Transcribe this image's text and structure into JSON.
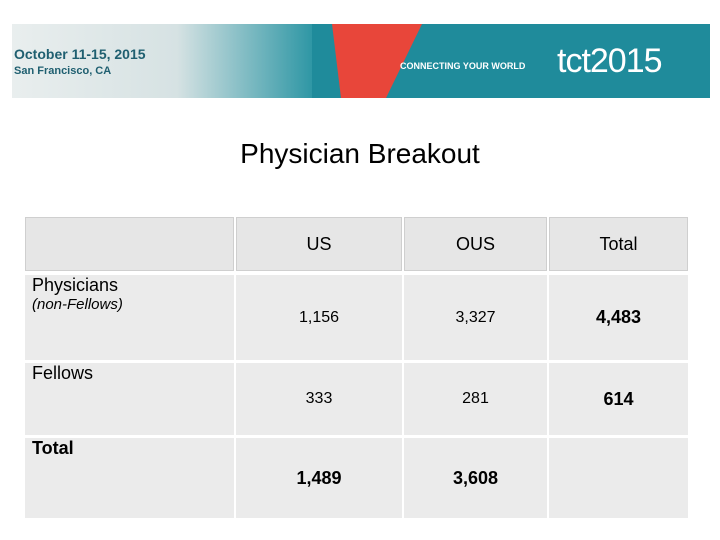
{
  "banner": {
    "dates": "October 11-15, 2015",
    "location": "San Francisco, CA",
    "tagline": "CONNECTING YOUR WORLD",
    "logo": "tct2015"
  },
  "title": "Physician Breakout",
  "table": {
    "header": [
      "US",
      "OUS",
      "Total"
    ],
    "rows": [
      {
        "label": "Physicians",
        "sublabel": "(non-Fellows)",
        "cells": [
          "1,156",
          "3,327",
          "4,483"
        ]
      },
      {
        "label": "Fellows",
        "cells": [
          "333",
          "281",
          "614"
        ]
      },
      {
        "label": "Total",
        "cells": [
          "1,489",
          "3,608"
        ]
      }
    ]
  }
}
